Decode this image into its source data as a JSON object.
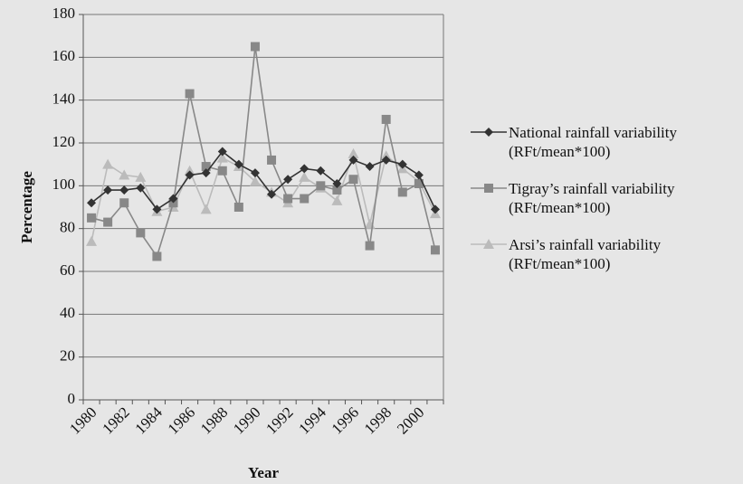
{
  "chart_data": {
    "type": "line",
    "x_label": "Year",
    "y_label": "Percentage",
    "categories": [
      "1980",
      null,
      "1982",
      null,
      "1984",
      null,
      "1986",
      null,
      "1988",
      null,
      "1990",
      null,
      "1992",
      null,
      "1994",
      null,
      "1996",
      null,
      "1998",
      null,
      "2000",
      null
    ],
    "series": [
      {
        "name": "National rainfall variability (RFt/mean*100)",
        "color": "#333333",
        "marker": "diamond",
        "values": [
          92,
          98,
          98,
          99,
          89,
          94,
          105,
          106,
          116,
          110,
          106,
          96,
          103,
          108,
          107,
          101,
          112,
          109,
          112,
          110,
          105,
          89
        ]
      },
      {
        "name": "Tigray’s rainfall variability (RFt/mean*100)",
        "color": "#888888",
        "marker": "square",
        "values": [
          85,
          83,
          92,
          78,
          67,
          92,
          143,
          109,
          107,
          90,
          165,
          112,
          94,
          94,
          100,
          98,
          103,
          72,
          131,
          97,
          101,
          70
        ]
      },
      {
        "name": "Arsi’s rainfall variability (RFt/mean*100)",
        "color": "#bbbbbb",
        "marker": "triangle",
        "values": [
          74,
          110,
          105,
          104,
          88,
          90,
          107,
          89,
          113,
          109,
          102,
          97,
          92,
          104,
          99,
          93,
          115,
          82,
          114,
          108,
          102,
          87
        ]
      }
    ],
    "ylim": [
      0,
      180
    ],
    "yticks": [
      0,
      20,
      40,
      60,
      80,
      100,
      120,
      140,
      160,
      180
    ],
    "grid": true
  }
}
